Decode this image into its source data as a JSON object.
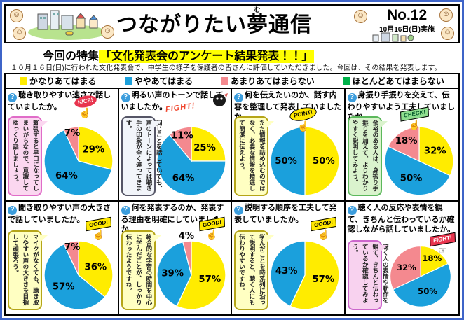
{
  "page": {
    "border_color": "#3e64c8"
  },
  "ui": {
    "question_icon": "?",
    "face_icon": "☺"
  },
  "header": {
    "title_pre": "つながりたい",
    "title_ruby_base": "夢",
    "title_ruby_text": "む",
    "title_post": "通信",
    "issue_no": "No.12",
    "issue_date": "10月16日(日)実施",
    "feature_prefix": "今回の特集",
    "feature_highlight": "「文化発表会のアンケート結果発表！！」",
    "highlight_color": "#ffff00",
    "subtitle": "１０月１６日(日)に行われた文化発表会で、中学生の様子を保護者の皆さんに評価していただきました。今回は、その結果を発表します。"
  },
  "legend": {
    "items": [
      {
        "label": "かなりあてはまる",
        "color": "#ffec00"
      },
      {
        "label": "ややあてはまる",
        "color": "#1ba0dc"
      },
      {
        "label": "あまりあてはまらない",
        "color": "#f4898f"
      },
      {
        "label": "ほとんどあてはまらない",
        "color": "#00b24a"
      }
    ]
  },
  "chart_data": [
    {
      "type": "pie",
      "question": "聴き取りやすい速さで話していましたか。",
      "categories": [
        "かなりあてはまる",
        "ややあてはまる",
        "あまりあてはまらない"
      ],
      "values": [
        29,
        64,
        7
      ],
      "colors": [
        "#ffec00",
        "#1ba0dc",
        "#f4898f"
      ],
      "bubble": {
        "text": "緊張すると早口になってしまいがちなので、意識してゆっくり話しましょう。",
        "fill": "#fbd7f0",
        "border": "#e06cc8"
      },
      "badge": {
        "label": "NICE!",
        "color": "#e8344e",
        "text_color": "#ffffff",
        "icon": "pointing-hand",
        "icon_glyph": "☝"
      }
    },
    {
      "type": "pie",
      "question": "明るい声のトーンで話していましたか。",
      "categories": [
        "かなりあてはまる",
        "ややあてはまる",
        "あまりあてはまらない"
      ],
      "values": [
        25,
        64,
        11
      ],
      "colors": [
        "#ffec00",
        "#1ba0dc",
        "#f4898f"
      ],
      "bubble": {
        "text": "同じことを話していても、声のトーンによっては聴き手の印象が全く違ってきます。",
        "fill": "#f2f5fa",
        "border": "#555566"
      },
      "badge": {
        "label": "FIGHT!",
        "color": "#f0452c",
        "text_color": "#f0452c",
        "icon": "mascot",
        "icon_glyph": ""
      }
    },
    {
      "type": "pie",
      "question": "何を伝えたいのか、話す内容を整理して発表していましたか。",
      "categories": [
        "かなりあてはまる",
        "ややあてはまる"
      ],
      "values": [
        50,
        50
      ],
      "colors": [
        "#ffec00",
        "#1ba0dc"
      ],
      "bubble": {
        "text": "ただ情報を詰め込むのではなく、必要な情報を精選して簡潔に伝えよう。",
        "fill": "#ffffc2",
        "border": "#b5a518"
      },
      "badge": {
        "label": "POINT!",
        "color": "#ffe800",
        "text_color": "#000000",
        "icon": "pointing-hand",
        "icon_glyph": "☝"
      }
    },
    {
      "type": "pie",
      "question": "身振り手振りを交えて、伝わりやすいよう工夫していましたか。",
      "categories": [
        "かなりあてはまる",
        "ややあてはまる",
        "あまりあてはまらない"
      ],
      "values": [
        32,
        50,
        18
      ],
      "colors": [
        "#ffec00",
        "#1ba0dc",
        "#f4898f"
      ],
      "bubble": {
        "text": "余裕のある人は、身振り手振りを加えて、よりわかりやすく説明してみよう。",
        "fill": "#daf3cd",
        "border": "#5cb85c"
      },
      "badge": {
        "label": "CHECK!",
        "color": "#8ede8e",
        "text_color": "#055a2c",
        "icon": "pointing-hand",
        "icon_glyph": "☝"
      }
    },
    {
      "type": "pie",
      "question": "聞き取りやすい声の大きさで話していましたか。",
      "categories": [
        "かなりあてはまる",
        "ややあてはまる",
        "あまりあてはまらない"
      ],
      "values": [
        36,
        57,
        7
      ],
      "colors": [
        "#ffec00",
        "#1ba0dc",
        "#f4898f"
      ],
      "bubble": {
        "text": "マイクがなくても、聴き取りやすい声の大きさを目指して頑張ろう。",
        "fill": "#ffffc2",
        "border": "#b5a518"
      },
      "badge": {
        "label": "GOOD!",
        "color": "#ffe800",
        "text_color": "#000000",
        "icon": "thumbs-up-hand",
        "icon_glyph": "☝"
      }
    },
    {
      "type": "pie",
      "question": "何を発表するのか、発表する理由を明確にしていましたか。",
      "categories": [
        "かなりあてはまる",
        "ややあてはまる",
        "あまりあてはまらない"
      ],
      "values": [
        57,
        39,
        4
      ],
      "colors": [
        "#ffec00",
        "#1ba0dc",
        "#f4898f"
      ],
      "bubble": {
        "text": "総合的な学習の時間を中心に学んだことが、しっかり伝わったようですね。",
        "fill": "#ffffc2",
        "border": "#b5a518"
      },
      "badge": {
        "label": "GOOD!",
        "color": "#ffe800",
        "text_color": "#000000",
        "icon": "thumbs-up-hand",
        "icon_glyph": "☝"
      }
    },
    {
      "type": "pie",
      "question": "説明する順序を工夫して発表していましたか。",
      "categories": [
        "かなりあてはまる",
        "ややあてはまる"
      ],
      "values": [
        57,
        43
      ],
      "colors": [
        "#ffec00",
        "#1ba0dc"
      ],
      "bubble": {
        "text": "学んだことを時系列に沿って説明すると、聴く人にも伝わりやすいですね。",
        "fill": "#ffffc2",
        "border": "#b5a518"
      },
      "badge": {
        "label": "GOOD!",
        "color": "#ffe800",
        "text_color": "#000000",
        "icon": "thumbs-up-hand",
        "icon_glyph": "☝"
      }
    },
    {
      "type": "pie",
      "question": "聴く人の反応や表情を観て、きちんと伝わっているか確認しながら話していましたか。",
      "categories": [
        "かなりあてはまる",
        "ややあてはまる",
        "あまりあてはまらない"
      ],
      "values": [
        18,
        50,
        32
      ],
      "colors": [
        "#ffec00",
        "#1ba0dc",
        "#f4898f"
      ],
      "bubble": {
        "text": "聴く人の表情や動作を観て、きちんと伝わっているか確認してみよう。",
        "fill": "#f8d2ef",
        "border": "#cc66cc"
      },
      "badge": {
        "label": "FIGHT!",
        "color": "#e8344e",
        "text_color": "#ffffff",
        "icon": "fist-hand",
        "icon_glyph": "☞"
      }
    }
  ]
}
